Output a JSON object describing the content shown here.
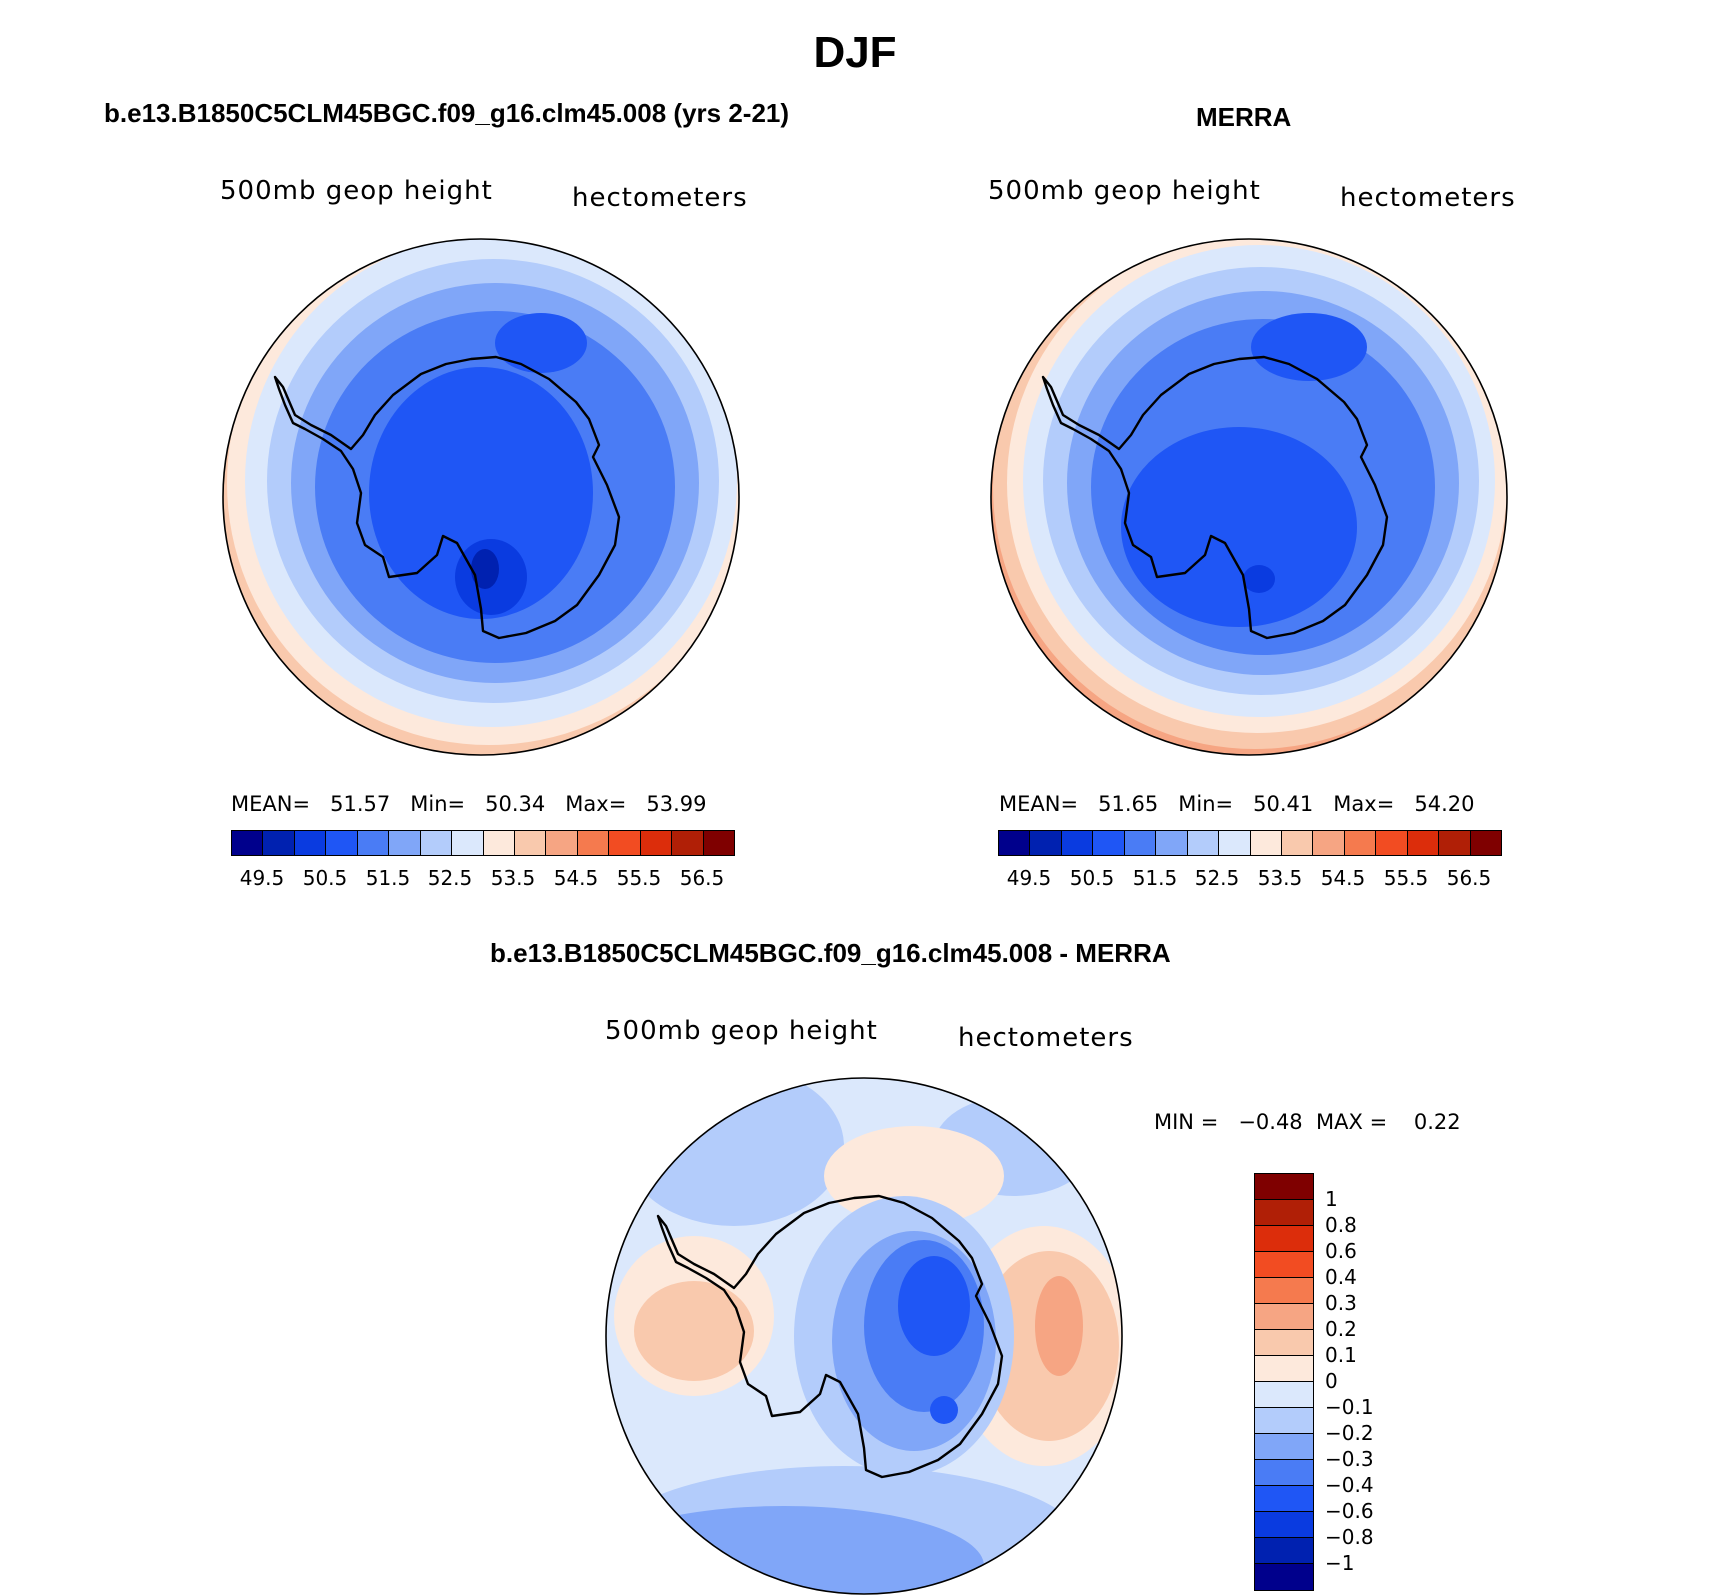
{
  "title": "DJF",
  "palette": {
    "abs": [
      "#00008c",
      "#0021b0",
      "#0a3be0",
      "#1f56f5",
      "#4a7cf5",
      "#80a6f8",
      "#b3ccfb",
      "#dbe8fc",
      "#fde9dc",
      "#f9c9ad",
      "#f6a583",
      "#f57a4e",
      "#f24c22",
      "#dc2d0b",
      "#b01f06",
      "#7f0000"
    ],
    "diff": [
      "#7f0000",
      "#b01f06",
      "#dc2d0b",
      "#f24c22",
      "#f57a4e",
      "#f6a583",
      "#f9c9ad",
      "#fde9dc",
      "#dbe8fc",
      "#b3ccfb",
      "#80a6f8",
      "#4a7cf5",
      "#1f56f5",
      "#0a3be0",
      "#0021b0",
      "#00008c"
    ]
  },
  "panels": [
    {
      "title": "b.e13.B1850C5CLM45BGC.f09_g16.clm45.008 (yrs 2-21)",
      "variable": "500mb  geop  height",
      "units": "hectometers",
      "stats": {
        "mean_label": "MEAN=",
        "mean": "51.57",
        "min_label": "Min=",
        "min": "50.34",
        "max_label": "Max=",
        "max": "53.99"
      },
      "colorbar_labels": [
        "49.5",
        "50.5",
        "51.5",
        "52.5",
        "53.5",
        "54.5",
        "55.5",
        "56.5"
      ]
    },
    {
      "title": "MERRA",
      "variable": "500mb  geop  height",
      "units": "hectometers",
      "stats": {
        "mean_label": "MEAN=",
        "mean": "51.65",
        "min_label": "Min=",
        "min": "50.41",
        "max_label": "Max=",
        "max": "54.20"
      },
      "colorbar_labels": [
        "49.5",
        "50.5",
        "51.5",
        "52.5",
        "53.5",
        "54.5",
        "55.5",
        "56.5"
      ]
    }
  ],
  "diff_panel": {
    "title": "b.e13.B1850C5CLM45BGC.f09_g16.clm45.008 - MERRA",
    "variable": "500mb  geop  height",
    "units": "hectometers",
    "minmax": "MIN =   −0.48  MAX =    0.22",
    "colorbar_labels": [
      "1",
      "0.8",
      "0.6",
      "0.4",
      "0.3",
      "0.2",
      "0.1",
      "0",
      "−0.1",
      "−0.2",
      "−0.3",
      "−0.4",
      "−0.6",
      "−0.8",
      "−1"
    ]
  }
}
